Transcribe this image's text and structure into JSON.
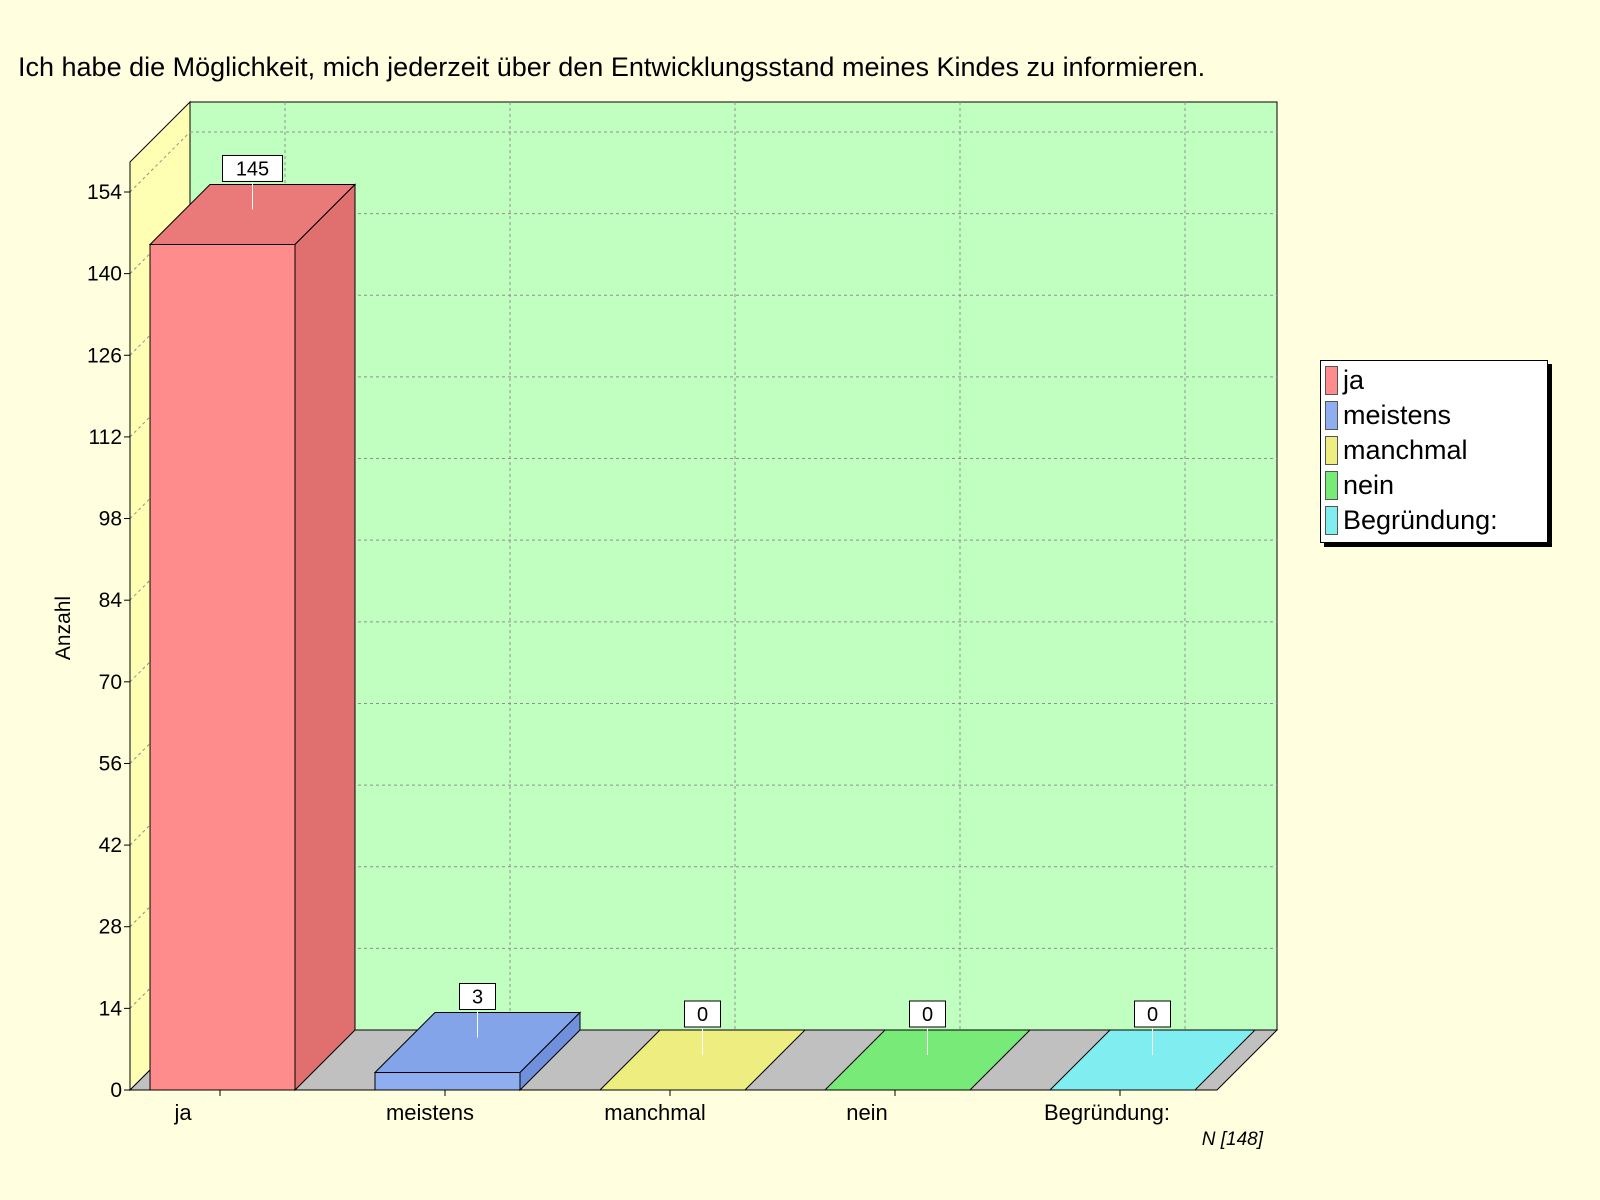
{
  "chart_data": {
    "type": "bar",
    "title": "Ich habe die Möglichkeit, mich jederzeit über den Entwicklungsstand meines Kindes zu informieren.",
    "ylabel": "Anzahl",
    "xlabel": "",
    "categories": [
      "ja",
      "meistens",
      "manchmal",
      "nein",
      "Begründung:"
    ],
    "values": [
      145,
      3,
      0,
      0,
      0
    ],
    "colors": [
      "#ff8c8c",
      "#8eaef0",
      "#eeee80",
      "#78ea78",
      "#80eef0"
    ],
    "side_colors": [
      "#e07070",
      "#7090dc",
      "#d8d868",
      "#5cc85c",
      "#60d0d0"
    ],
    "top_colors": [
      "#ea7a7a",
      "#84a4ea",
      "#eeee80",
      "#78ea78",
      "#80eef0"
    ],
    "ylim": [
      0,
      154
    ],
    "yticks": [
      0,
      14,
      28,
      42,
      56,
      70,
      84,
      98,
      112,
      126,
      140,
      154
    ],
    "grid": true,
    "legend_position": "right",
    "legend": [
      "ja",
      "meistens",
      "manchmal",
      "nein",
      "Begründung:"
    ],
    "n_label": "N [148]",
    "background_color": "#ffffe0",
    "wall_color": "#c0ffc0",
    "side_wall_color": "#ffffb4",
    "floor_color": "#c0c0c0"
  }
}
